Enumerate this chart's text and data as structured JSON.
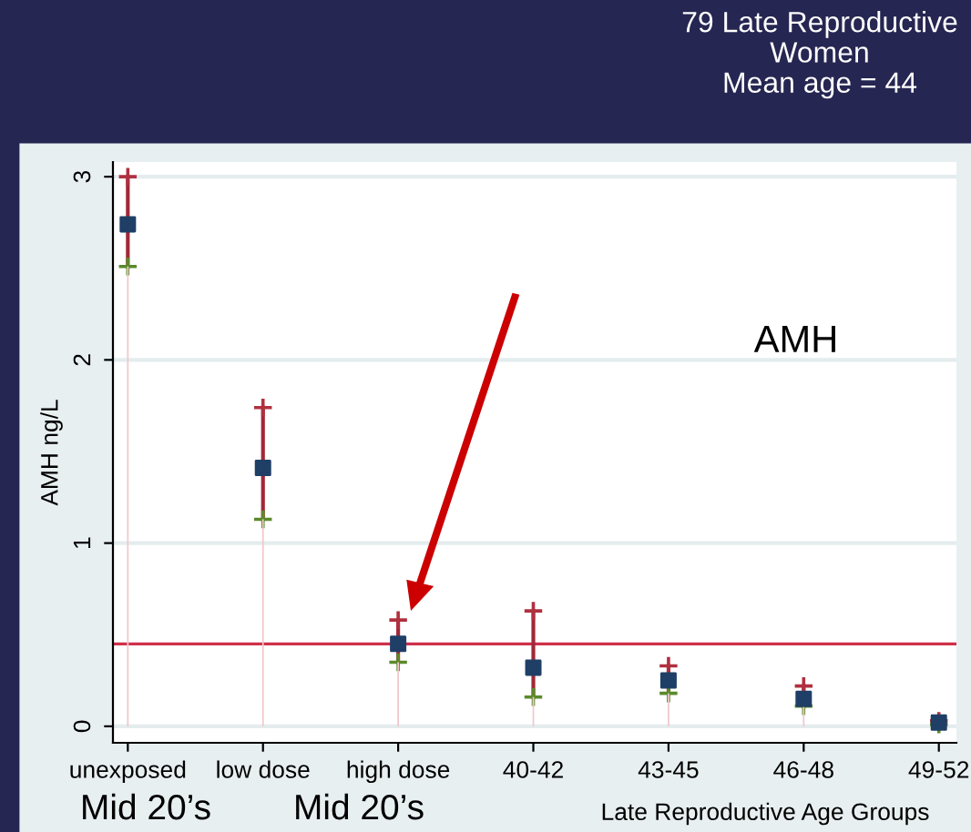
{
  "chart_data": {
    "type": "scatter",
    "title": "79 Late Reproductive\nWomen\nMean age = 44",
    "xlabel": "Late Reproductive Age Groups",
    "ylabel": "AMH ng/L",
    "categories": [
      "unexposed",
      "low dose",
      "high dose",
      "40-42",
      "43-45",
      "46-48",
      "49-52"
    ],
    "series": [
      {
        "color": "#1f3f66",
        "marker": "square",
        "values": [
          2.74,
          1.41,
          0.45,
          0.32,
          0.25,
          0.15,
          0.02
        ],
        "errors": [
          [
            2.51,
            3.0
          ],
          [
            1.13,
            1.74
          ],
          [
            0.35,
            0.58
          ],
          [
            0.16,
            0.63
          ],
          [
            0.18,
            0.33
          ],
          [
            0.11,
            0.22
          ],
          [
            0.01,
            0.03
          ]
        ]
      },
      {
        "type": "bar",
        "color": "#f0c8cc",
        "values": [
          2.51,
          1.13,
          0.35,
          0.16,
          0.18,
          0.11,
          null
        ]
      }
    ],
    "ylim": [
      -0.09,
      3.08
    ],
    "yticks": [
      0,
      1,
      2,
      3
    ],
    "grid": "y",
    "ref_lines": [
      {
        "axis": "y",
        "value": 0.45,
        "color": "#d0304a"
      }
    ],
    "annotations": [
      "AMH",
      "Mid 20’s",
      "Mid 20’s"
    ]
  }
}
